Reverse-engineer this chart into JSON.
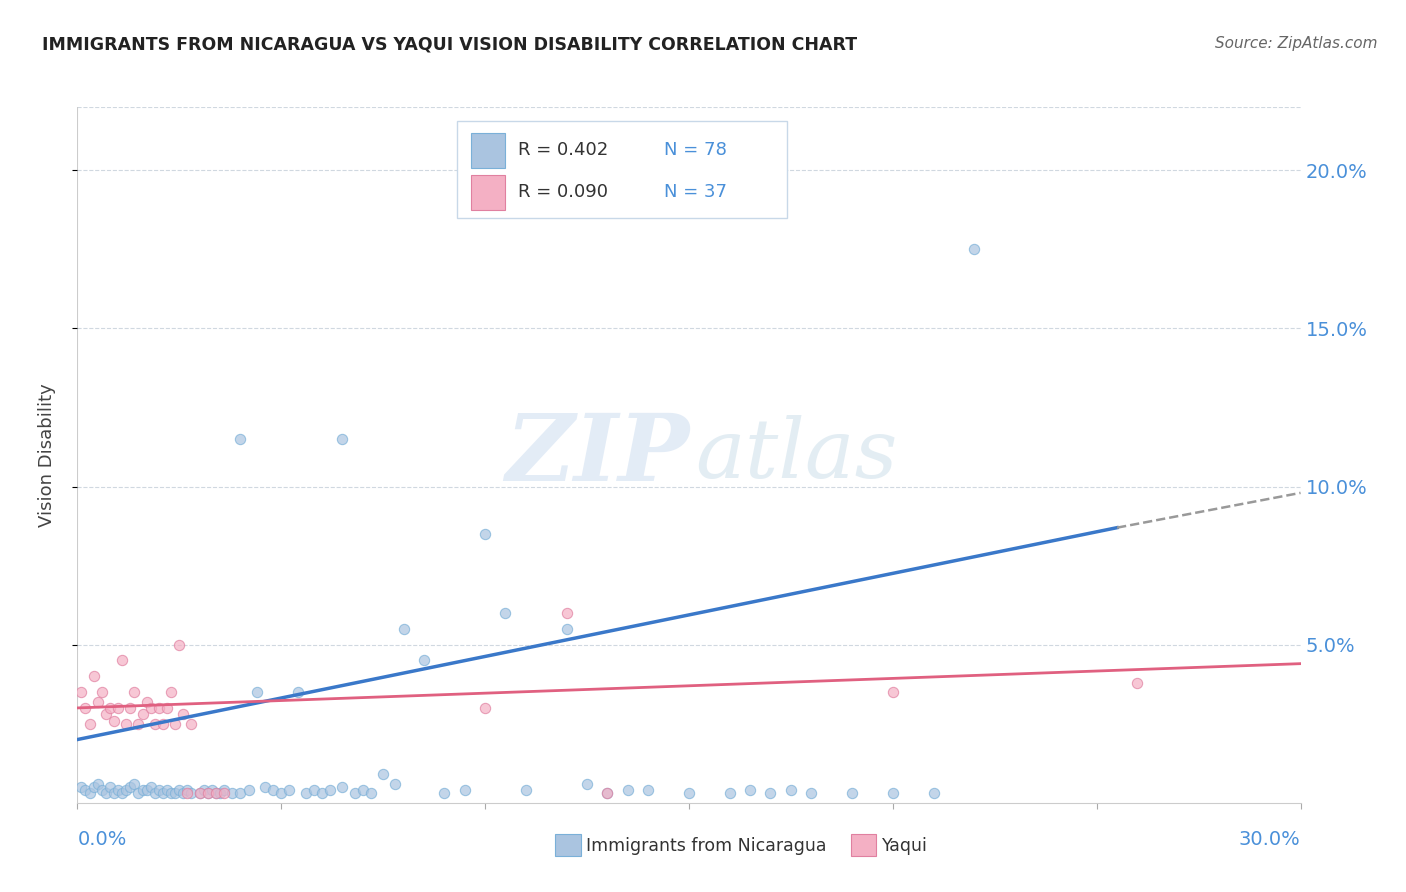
{
  "title": "IMMIGRANTS FROM NICARAGUA VS YAQUI VISION DISABILITY CORRELATION CHART",
  "source": "Source: ZipAtlas.com",
  "ylabel": "Vision Disability",
  "watermark_zip": "ZIP",
  "watermark_atlas": "atlas",
  "legend": {
    "series1_label": "Immigrants from Nicaragua",
    "series1_R": "R = 0.402",
    "series1_N": "N = 78",
    "series2_label": "Yaqui",
    "series2_R": "R = 0.090",
    "series2_N": "N = 37",
    "color1": "#aac4e0",
    "color2": "#f4b0c4"
  },
  "blue_scatter": [
    [
      0.001,
      0.005
    ],
    [
      0.002,
      0.004
    ],
    [
      0.003,
      0.003
    ],
    [
      0.004,
      0.005
    ],
    [
      0.005,
      0.006
    ],
    [
      0.006,
      0.004
    ],
    [
      0.007,
      0.003
    ],
    [
      0.008,
      0.005
    ],
    [
      0.009,
      0.003
    ],
    [
      0.01,
      0.004
    ],
    [
      0.011,
      0.003
    ],
    [
      0.012,
      0.004
    ],
    [
      0.013,
      0.005
    ],
    [
      0.014,
      0.006
    ],
    [
      0.015,
      0.003
    ],
    [
      0.016,
      0.004
    ],
    [
      0.017,
      0.004
    ],
    [
      0.018,
      0.005
    ],
    [
      0.019,
      0.003
    ],
    [
      0.02,
      0.004
    ],
    [
      0.021,
      0.003
    ],
    [
      0.022,
      0.004
    ],
    [
      0.023,
      0.003
    ],
    [
      0.024,
      0.003
    ],
    [
      0.025,
      0.004
    ],
    [
      0.026,
      0.003
    ],
    [
      0.027,
      0.004
    ],
    [
      0.028,
      0.003
    ],
    [
      0.03,
      0.003
    ],
    [
      0.031,
      0.004
    ],
    [
      0.032,
      0.003
    ],
    [
      0.033,
      0.004
    ],
    [
      0.034,
      0.003
    ],
    [
      0.035,
      0.003
    ],
    [
      0.036,
      0.004
    ],
    [
      0.038,
      0.003
    ],
    [
      0.04,
      0.003
    ],
    [
      0.042,
      0.004
    ],
    [
      0.044,
      0.035
    ],
    [
      0.046,
      0.005
    ],
    [
      0.048,
      0.004
    ],
    [
      0.05,
      0.003
    ],
    [
      0.052,
      0.004
    ],
    [
      0.054,
      0.035
    ],
    [
      0.056,
      0.003
    ],
    [
      0.058,
      0.004
    ],
    [
      0.06,
      0.003
    ],
    [
      0.062,
      0.004
    ],
    [
      0.065,
      0.005
    ],
    [
      0.068,
      0.003
    ],
    [
      0.07,
      0.004
    ],
    [
      0.072,
      0.003
    ],
    [
      0.04,
      0.115
    ],
    [
      0.065,
      0.115
    ],
    [
      0.075,
      0.009
    ],
    [
      0.078,
      0.006
    ],
    [
      0.08,
      0.055
    ],
    [
      0.085,
      0.045
    ],
    [
      0.09,
      0.003
    ],
    [
      0.095,
      0.004
    ],
    [
      0.1,
      0.085
    ],
    [
      0.105,
      0.06
    ],
    [
      0.11,
      0.004
    ],
    [
      0.12,
      0.055
    ],
    [
      0.125,
      0.006
    ],
    [
      0.13,
      0.003
    ],
    [
      0.135,
      0.004
    ],
    [
      0.14,
      0.004
    ],
    [
      0.15,
      0.003
    ],
    [
      0.16,
      0.003
    ],
    [
      0.165,
      0.004
    ],
    [
      0.17,
      0.003
    ],
    [
      0.175,
      0.004
    ],
    [
      0.18,
      0.003
    ],
    [
      0.19,
      0.003
    ],
    [
      0.2,
      0.003
    ],
    [
      0.21,
      0.003
    ],
    [
      0.22,
      0.175
    ]
  ],
  "pink_scatter": [
    [
      0.001,
      0.035
    ],
    [
      0.002,
      0.03
    ],
    [
      0.003,
      0.025
    ],
    [
      0.004,
      0.04
    ],
    [
      0.005,
      0.032
    ],
    [
      0.006,
      0.035
    ],
    [
      0.007,
      0.028
    ],
    [
      0.008,
      0.03
    ],
    [
      0.009,
      0.026
    ],
    [
      0.01,
      0.03
    ],
    [
      0.011,
      0.045
    ],
    [
      0.012,
      0.025
    ],
    [
      0.013,
      0.03
    ],
    [
      0.014,
      0.035
    ],
    [
      0.015,
      0.025
    ],
    [
      0.016,
      0.028
    ],
    [
      0.017,
      0.032
    ],
    [
      0.018,
      0.03
    ],
    [
      0.019,
      0.025
    ],
    [
      0.02,
      0.03
    ],
    [
      0.021,
      0.025
    ],
    [
      0.022,
      0.03
    ],
    [
      0.023,
      0.035
    ],
    [
      0.024,
      0.025
    ],
    [
      0.025,
      0.05
    ],
    [
      0.026,
      0.028
    ],
    [
      0.027,
      0.003
    ],
    [
      0.028,
      0.025
    ],
    [
      0.03,
      0.003
    ],
    [
      0.032,
      0.003
    ],
    [
      0.034,
      0.003
    ],
    [
      0.036,
      0.003
    ],
    [
      0.1,
      0.03
    ],
    [
      0.12,
      0.06
    ],
    [
      0.2,
      0.035
    ],
    [
      0.26,
      0.038
    ],
    [
      0.13,
      0.003
    ]
  ],
  "blue_line": {
    "x_start": 0.0,
    "y_start": 0.02,
    "x_end": 0.255,
    "y_end": 0.087
  },
  "blue_dash_line": {
    "x_start": 0.255,
    "y_start": 0.087,
    "x_end": 0.3,
    "y_end": 0.098
  },
  "pink_line": {
    "x_start": 0.0,
    "y_start": 0.03,
    "x_end": 0.3,
    "y_end": 0.044
  },
  "xlim": [
    0.0,
    0.3
  ],
  "ylim": [
    0.0,
    0.22
  ],
  "yticks": [
    0.05,
    0.1,
    0.15,
    0.2
  ],
  "ytick_labels": [
    "5.0%",
    "10.0%",
    "15.0%",
    "20.0%"
  ],
  "background_color": "#ffffff",
  "grid_color": "#d0d8e0",
  "scatter_alpha": 0.7,
  "scatter_size": 55,
  "title_color": "#222222",
  "axis_label_color": "#4a90d9",
  "trend_line_blue": "#3a78c9",
  "trend_line_pink": "#e06080",
  "source_color": "#666666"
}
